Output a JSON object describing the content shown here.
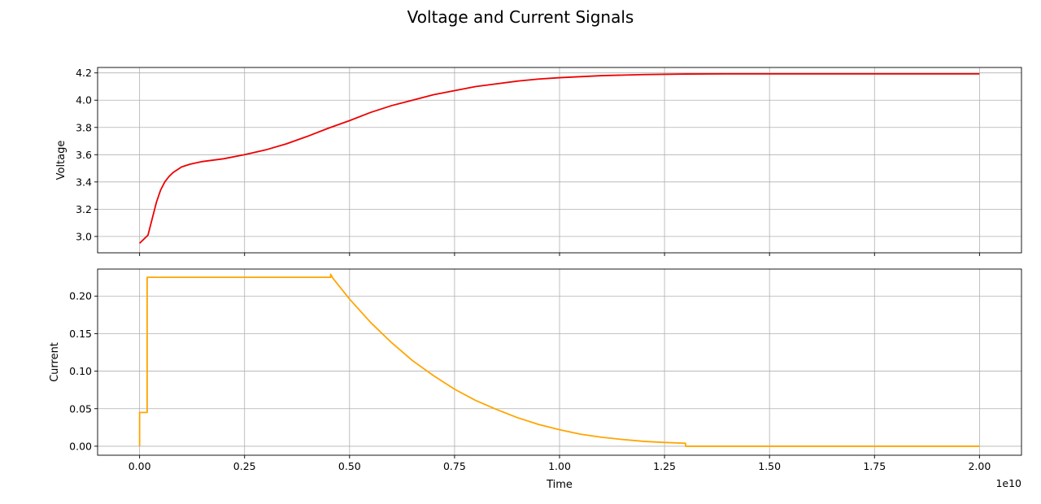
{
  "chart_data": {
    "type": "line",
    "title": "Voltage and Current Signals",
    "shared_x": {
      "label": "Time",
      "offset_label": "1e10",
      "scale": 10000000000,
      "lim": [
        -0.1,
        2.1
      ],
      "ticks": [
        0.0,
        0.25,
        0.5,
        0.75,
        1.0,
        1.25,
        1.5,
        1.75,
        2.0
      ],
      "tick_labels": [
        "0.00",
        "0.25",
        "0.50",
        "0.75",
        "1.00",
        "1.25",
        "1.50",
        "1.75",
        "2.00"
      ]
    },
    "grid": true,
    "subplots": [
      {
        "ylabel": "Voltage",
        "ylim": [
          2.88,
          4.24
        ],
        "yticks": [
          3.0,
          3.2,
          3.4,
          3.6,
          3.8,
          4.0,
          4.2
        ],
        "ytick_labels": [
          "3.0",
          "3.2",
          "3.4",
          "3.6",
          "3.8",
          "4.0",
          "4.2"
        ],
        "series": [
          {
            "color": "#ee0000",
            "x": [
              0.0,
              0.02,
              0.03,
              0.04,
              0.05,
              0.06,
              0.07,
              0.08,
              0.1,
              0.12,
              0.15,
              0.2,
              0.25,
              0.3,
              0.35,
              0.4,
              0.45,
              0.5,
              0.55,
              0.6,
              0.65,
              0.7,
              0.75,
              0.8,
              0.85,
              0.9,
              0.95,
              1.0,
              1.1,
              1.2,
              1.3,
              1.4,
              1.6,
              1.8,
              2.0
            ],
            "y": [
              2.95,
              3.01,
              3.13,
              3.25,
              3.34,
              3.4,
              3.44,
              3.47,
              3.51,
              3.53,
              3.55,
              3.57,
              3.6,
              3.635,
              3.68,
              3.735,
              3.795,
              3.85,
              3.91,
              3.96,
              4.0,
              4.04,
              4.07,
              4.1,
              4.12,
              4.14,
              4.155,
              4.165,
              4.18,
              4.188,
              4.192,
              4.193,
              4.193,
              4.193,
              4.193
            ]
          }
        ]
      },
      {
        "ylabel": "Current",
        "ylim": [
          -0.012,
          0.236
        ],
        "yticks": [
          0.0,
          0.05,
          0.1,
          0.15,
          0.2
        ],
        "ytick_labels": [
          "0.00",
          "0.05",
          "0.10",
          "0.15",
          "0.20"
        ],
        "series": [
          {
            "color": "#ffa500",
            "x": [
              0.0,
              0.0,
              0.018,
              0.018,
              0.455,
              0.455,
              0.46,
              0.5,
              0.55,
              0.6,
              0.65,
              0.7,
              0.75,
              0.8,
              0.85,
              0.9,
              0.95,
              1.0,
              1.05,
              1.1,
              1.15,
              1.2,
              1.25,
              1.3,
              1.3,
              2.0
            ],
            "y": [
              0.0,
              0.045,
              0.045,
              0.225,
              0.225,
              0.229,
              0.224,
              0.196,
              0.165,
              0.138,
              0.114,
              0.094,
              0.076,
              0.061,
              0.049,
              0.038,
              0.029,
              0.022,
              0.016,
              0.012,
              0.009,
              0.0065,
              0.005,
              0.004,
              0.0,
              0.0
            ]
          }
        ]
      }
    ]
  }
}
